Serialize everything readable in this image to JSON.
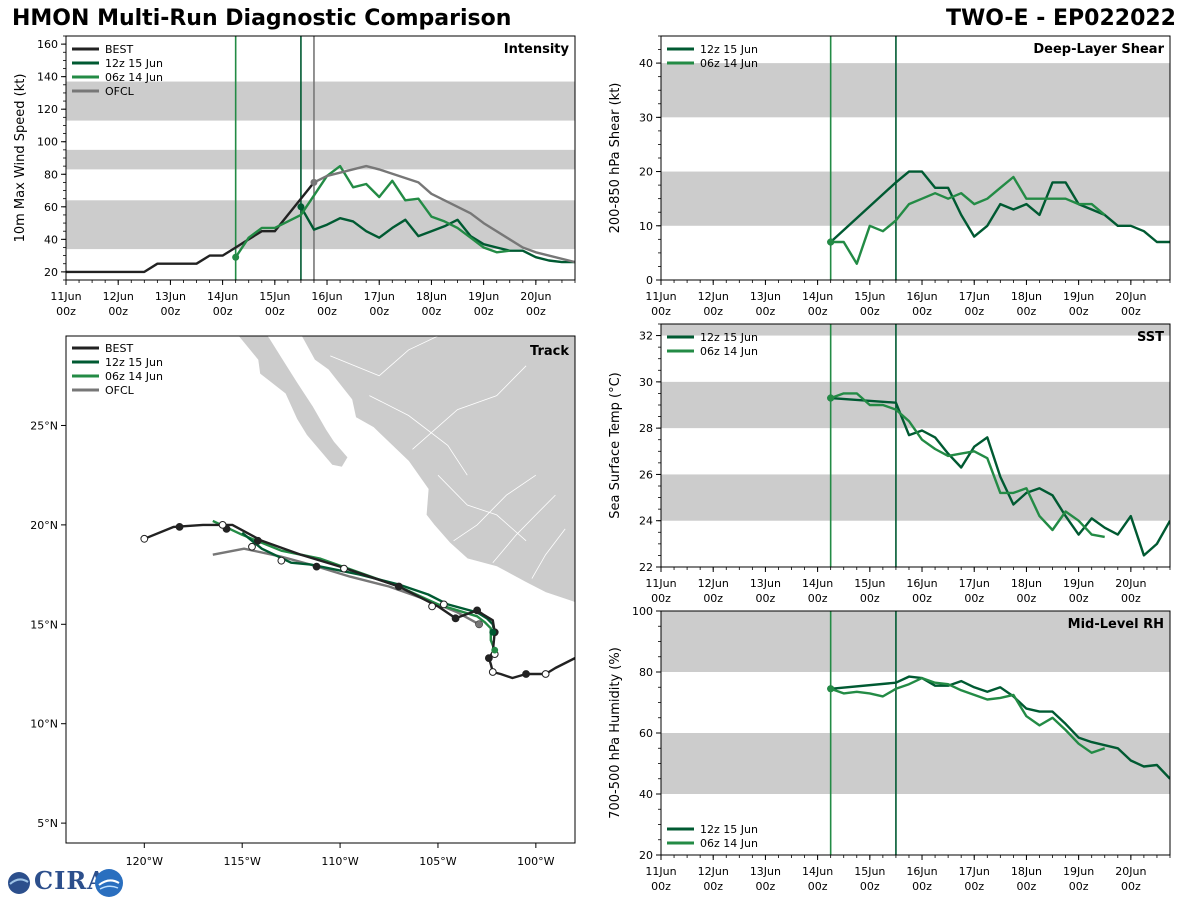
{
  "header": {
    "left_title": "HMON Multi-Run Diagnostic Comparison",
    "right_title": "TWO-E - EP022022"
  },
  "logo": {
    "text": "CIRA",
    "icon": "cira-logo"
  },
  "colors": {
    "BEST": "#222222",
    "run_12z": "#005a32",
    "run_06z": "#238b45",
    "OFCL": "#777777",
    "band": "#cccccc",
    "land": "#cccccc"
  },
  "time_axis": {
    "start": 0,
    "end": 9.75,
    "ticks": [
      {
        "t": 0,
        "label1": "11Jun",
        "label2": "00z"
      },
      {
        "t": 1,
        "label1": "12Jun",
        "label2": "00z"
      },
      {
        "t": 2,
        "label1": "13Jun",
        "label2": "00z"
      },
      {
        "t": 3,
        "label1": "14Jun",
        "label2": "00z"
      },
      {
        "t": 4,
        "label1": "15Jun",
        "label2": "00z"
      },
      {
        "t": 5,
        "label1": "16Jun",
        "label2": "00z"
      },
      {
        "t": 6,
        "label1": "17Jun",
        "label2": "00z"
      },
      {
        "t": 7,
        "label1": "18Jun",
        "label2": "00z"
      },
      {
        "t": 8,
        "label1": "19Jun",
        "label2": "00z"
      },
      {
        "t": 9,
        "label1": "20Jun",
        "label2": "00z"
      }
    ]
  },
  "chart_data": [
    {
      "id": "intensity",
      "type": "line",
      "title": "Intensity",
      "ylabel": "10m Max Wind Speed (kt)",
      "ylim": [
        15,
        165
      ],
      "yticks": [
        20,
        40,
        60,
        80,
        100,
        120,
        140,
        160
      ],
      "bands": [
        [
          34,
          64
        ],
        [
          83,
          95
        ],
        [
          113,
          137
        ]
      ],
      "vlines": [
        {
          "t": 3.25,
          "color": "run_06z"
        },
        {
          "t": 4.5,
          "color": "run_12z"
        },
        {
          "t": 4.75,
          "color": "OFCL"
        }
      ],
      "legend": [
        "BEST",
        "12z 15 Jun",
        "06z 14 Jun",
        "OFCL"
      ],
      "series": [
        {
          "name": "BEST",
          "color": "BEST",
          "x": [
            -0.25,
            0,
            0.5,
            1,
            1.5,
            1.75,
            2,
            2.5,
            2.75,
            3,
            3.25,
            3.5,
            3.75,
            4,
            4.25,
            4.5,
            4.75
          ],
          "y": [
            20,
            20,
            20,
            20,
            20,
            25,
            25,
            25,
            30,
            30,
            35,
            40,
            45,
            45,
            55,
            65,
            75
          ]
        },
        {
          "name": "12z 15 Jun",
          "color": "run_12z",
          "marker_first": true,
          "x": [
            4.5,
            4.75,
            5,
            5.25,
            5.5,
            5.75,
            6,
            6.25,
            6.5,
            6.75,
            7,
            7.25,
            7.5,
            7.75,
            8,
            8.25,
            8.5,
            8.75,
            9,
            9.25,
            9.5,
            9.75
          ],
          "y": [
            60,
            46,
            49,
            53,
            51,
            45,
            41,
            47,
            52,
            42,
            45,
            48,
            52,
            42,
            37,
            35,
            33,
            33,
            29,
            27,
            26,
            26
          ]
        },
        {
          "name": "06z 14 Jun",
          "color": "run_06z",
          "marker_first": true,
          "x": [
            3.25,
            3.5,
            3.75,
            4,
            4.25,
            4.5,
            4.75,
            5,
            5.25,
            5.5,
            5.75,
            6,
            6.25,
            6.5,
            6.75,
            7,
            7.25,
            7.5,
            7.75,
            8,
            8.25,
            8.5
          ],
          "y": [
            29,
            41,
            47,
            47,
            51,
            55,
            67,
            79,
            85,
            72,
            74,
            66,
            76,
            64,
            65,
            54,
            51,
            47,
            41,
            35,
            32,
            33
          ]
        },
        {
          "name": "OFCL",
          "color": "OFCL",
          "marker_first": true,
          "x": [
            4.75,
            5,
            5.75,
            6,
            6.75,
            7,
            7.75,
            8,
            8.75,
            9,
            9.75
          ],
          "y": [
            75,
            79,
            85,
            83,
            75,
            68,
            56,
            50,
            35,
            32,
            26
          ]
        }
      ]
    },
    {
      "id": "shear",
      "type": "line",
      "title": "Deep-Layer Shear",
      "ylabel": "200-850 hPa Shear (kt)",
      "ylim": [
        0,
        45
      ],
      "yticks": [
        0,
        10,
        20,
        30,
        40
      ],
      "bands": [
        [
          10,
          20
        ],
        [
          30,
          40
        ]
      ],
      "vlines": [
        {
          "t": 3.25,
          "color": "run_06z"
        },
        {
          "t": 4.5,
          "color": "run_12z"
        }
      ],
      "legend": [
        "12z 15 Jun",
        "06z 14 Jun"
      ],
      "series": [
        {
          "name": "12z 15 Jun",
          "color": "run_12z",
          "marker_first": true,
          "x": [
            3.25,
            4.5,
            4.75,
            5,
            5.25,
            5.5,
            5.75,
            6,
            6.25,
            6.5,
            6.75,
            7,
            7.25,
            7.5,
            7.75,
            8,
            8.25,
            8.5,
            8.75,
            9,
            9.25,
            9.5,
            9.75
          ],
          "y": [
            7,
            18,
            20,
            20,
            17,
            17,
            12,
            8,
            10,
            14,
            13,
            14,
            12,
            18,
            18,
            14,
            13,
            12,
            10,
            10,
            9,
            7,
            7
          ]
        },
        {
          "name": "06z 14 Jun",
          "color": "run_06z",
          "marker_first": true,
          "x": [
            3.25,
            3.5,
            3.75,
            4,
            4.25,
            4.5,
            4.75,
            5,
            5.25,
            5.5,
            5.75,
            6,
            6.25,
            6.5,
            6.75,
            7,
            7.25,
            7.5,
            7.75,
            8,
            8.25,
            8.5
          ],
          "y": [
            7,
            7,
            3,
            10,
            9,
            11,
            14,
            15,
            16,
            15,
            16,
            14,
            15,
            17,
            19,
            15,
            15,
            15,
            15,
            14,
            14,
            12
          ]
        }
      ]
    },
    {
      "id": "sst",
      "type": "line",
      "title": "SST",
      "ylabel": "Sea Surface Temp (°C)",
      "ylim": [
        22,
        32.5
      ],
      "yticks": [
        22,
        24,
        26,
        28,
        30,
        32
      ],
      "bands": [
        [
          24,
          26
        ],
        [
          28,
          30
        ],
        [
          32,
          32.5
        ]
      ],
      "vlines": [
        {
          "t": 3.25,
          "color": "run_06z"
        },
        {
          "t": 4.5,
          "color": "run_12z"
        }
      ],
      "legend": [
        "12z 15 Jun",
        "06z 14 Jun"
      ],
      "series": [
        {
          "name": "12z 15 Jun",
          "color": "run_12z",
          "marker_first": true,
          "x": [
            3.25,
            4.5,
            4.75,
            5,
            5.25,
            5.5,
            5.75,
            6,
            6.25,
            6.5,
            6.75,
            7,
            7.25,
            7.5,
            7.75,
            8,
            8.25,
            8.5,
            8.75,
            9,
            9.25,
            9.5,
            9.75
          ],
          "y": [
            29.3,
            29.1,
            27.7,
            27.9,
            27.6,
            26.9,
            26.3,
            27.2,
            27.6,
            25.9,
            24.7,
            25.2,
            25.4,
            25.1,
            24.2,
            23.4,
            24.1,
            23.7,
            23.4,
            24.2,
            22.5,
            23.0,
            24.0
          ]
        },
        {
          "name": "06z 14 Jun",
          "color": "run_06z",
          "marker_first": true,
          "x": [
            3.25,
            3.5,
            3.75,
            4,
            4.25,
            4.5,
            4.75,
            5,
            5.25,
            5.5,
            5.75,
            6,
            6.25,
            6.5,
            6.75,
            7,
            7.25,
            7.5,
            7.75,
            8,
            8.25,
            8.5
          ],
          "y": [
            29.3,
            29.5,
            29.5,
            29.0,
            29.0,
            28.8,
            28.3,
            27.5,
            27.1,
            26.8,
            26.9,
            27.0,
            26.7,
            25.2,
            25.2,
            25.4,
            24.2,
            23.6,
            24.4,
            24.0,
            23.4,
            23.3
          ]
        }
      ]
    },
    {
      "id": "rh",
      "type": "line",
      "title": "Mid-Level RH",
      "ylabel": "700-500 hPa Humidity (%)",
      "ylim": [
        20,
        100
      ],
      "yticks": [
        20,
        40,
        60,
        80,
        100
      ],
      "bands": [
        [
          40,
          60
        ],
        [
          80,
          100
        ]
      ],
      "vlines": [
        {
          "t": 3.25,
          "color": "run_06z"
        },
        {
          "t": 4.5,
          "color": "run_12z"
        }
      ],
      "legend_loc": "bottom-left",
      "legend": [
        "12z 15 Jun",
        "06z 14 Jun"
      ],
      "series": [
        {
          "name": "12z 15 Jun",
          "color": "run_12z",
          "marker_first": true,
          "x": [
            3.25,
            4.5,
            4.75,
            5,
            5.25,
            5.5,
            5.75,
            6,
            6.25,
            6.5,
            6.75,
            7,
            7.25,
            7.5,
            7.75,
            8,
            8.25,
            8.5,
            8.75,
            9,
            9.25,
            9.5,
            9.75
          ],
          "y": [
            74.5,
            76.5,
            78.5,
            78,
            75.5,
            75.5,
            77,
            75,
            73.5,
            75,
            72,
            68,
            67,
            67,
            63,
            58.5,
            57,
            56,
            55,
            51,
            49,
            49.5,
            45
          ]
        },
        {
          "name": "06z 14 Jun",
          "color": "run_06z",
          "marker_first": true,
          "x": [
            3.25,
            3.5,
            3.75,
            4,
            4.25,
            4.5,
            4.75,
            5,
            5.25,
            5.5,
            5.75,
            6,
            6.25,
            6.5,
            6.75,
            7,
            7.25,
            7.5,
            7.75,
            8,
            8.25,
            8.5
          ],
          "y": [
            74.5,
            73,
            73.5,
            73,
            72,
            74.5,
            76,
            78,
            76.5,
            76,
            74,
            72.5,
            71,
            71.5,
            72.5,
            65.5,
            62.5,
            65,
            61,
            56.5,
            53.5,
            55
          ]
        }
      ]
    },
    {
      "id": "track",
      "type": "scatter",
      "title": "Track",
      "xlim": [
        -124,
        -98
      ],
      "ylim": [
        4,
        29.5
      ],
      "xticks": [
        {
          "v": -120,
          "label": "120°W"
        },
        {
          "v": -115,
          "label": "115°W"
        },
        {
          "v": -110,
          "label": "110°W"
        },
        {
          "v": -105,
          "label": "105°W"
        },
        {
          "v": -100,
          "label": "100°W"
        }
      ],
      "yticks": [
        {
          "v": 5,
          "label": "5°N"
        },
        {
          "v": 10,
          "label": "10°N"
        },
        {
          "v": 15,
          "label": "15°N"
        },
        {
          "v": 20,
          "label": "20°N"
        },
        {
          "v": 25,
          "label": "25°N"
        }
      ],
      "legend": [
        "BEST",
        "12z 15 Jun",
        "06z 14 Jun",
        "OFCL"
      ],
      "series": [
        {
          "name": "BEST",
          "color": "BEST",
          "lon": [
            -98,
            -99,
            -99.5,
            -100.5,
            -101.2,
            -101.8,
            -102.2,
            -102.3,
            -102.4,
            -102.2,
            -102.1,
            -102.2,
            -102.7,
            -103,
            -104.1,
            -105,
            -107,
            -110,
            -112,
            -114,
            -115.5,
            -117,
            -118.5,
            -120
          ],
          "lat": [
            13.3,
            12.8,
            12.5,
            12.5,
            12.3,
            12.5,
            12.6,
            13,
            13.3,
            13.6,
            14.6,
            15.2,
            15.5,
            15.7,
            15.3,
            15.9,
            16.9,
            17.9,
            18.5,
            19.2,
            20,
            20.0,
            19.9,
            19.3
          ],
          "markers": [
            {
              "lon": -99.5,
              "lat": 12.5,
              "fill": "white"
            },
            {
              "lon": -100.5,
              "lat": 12.5,
              "fill": "solid"
            },
            {
              "lon": -102.2,
              "lat": 12.6,
              "fill": "white"
            },
            {
              "lon": -102.4,
              "lat": 13.3,
              "fill": "solid"
            },
            {
              "lon": -102.1,
              "lat": 14.6,
              "fill": "solid"
            },
            {
              "lon": -103,
              "lat": 15.7,
              "fill": "solid"
            },
            {
              "lon": -104.1,
              "lat": 15.3,
              "fill": "solid"
            },
            {
              "lon": -107,
              "lat": 16.9,
              "fill": "solid"
            },
            {
              "lon": -111.2,
              "lat": 17.9,
              "fill": "solid"
            },
            {
              "lon": -114.2,
              "lat": 19.2,
              "fill": "solid"
            },
            {
              "lon": -115.8,
              "lat": 19.8,
              "fill": "solid"
            },
            {
              "lon": -118.2,
              "lat": 19.9,
              "fill": "solid"
            },
            {
              "lon": -120,
              "lat": 19.3,
              "fill": "white"
            },
            {
              "lon": -116,
              "lat": 20.0,
              "fill": "white"
            },
            {
              "lon": -114.5,
              "lat": 18.9,
              "fill": "white"
            },
            {
              "lon": -113,
              "lat": 18.2,
              "fill": "white"
            },
            {
              "lon": -109.8,
              "lat": 17.8,
              "fill": "white"
            },
            {
              "lon": -104.7,
              "lat": 16.0,
              "fill": "white"
            },
            {
              "lon": -105.3,
              "lat": 15.9,
              "fill": "white"
            },
            {
              "lon": -102.9,
              "lat": 15.0,
              "fill": "white"
            },
            {
              "lon": -102.1,
              "lat": 13.5,
              "fill": "white"
            }
          ]
        },
        {
          "name": "12z 15 Jun",
          "color": "run_12z",
          "lon": [
            -102.1,
            -102.2,
            -102.5,
            -103,
            -104.5,
            -105.5,
            -107,
            -109,
            -111.5,
            -112.5,
            -114,
            -115
          ],
          "lat": [
            14.5,
            15.0,
            15.3,
            15.6,
            16.0,
            16.5,
            17.0,
            17.5,
            18.0,
            18.1,
            18.8,
            19.6
          ]
        },
        {
          "name": "06z 14 Jun",
          "color": "run_06z",
          "lon": [
            -102.1,
            -102.3,
            -102.3,
            -102.6,
            -103,
            -105,
            -107,
            -109,
            -111,
            -113,
            -115,
            -116.5
          ],
          "lat": [
            13.7,
            14.2,
            14.8,
            15.1,
            15.4,
            16.0,
            16.9,
            17.6,
            18.3,
            18.7,
            19.5,
            20.2
          ]
        },
        {
          "name": "OFCL",
          "color": "OFCL",
          "lon": [
            -102.9,
            -104,
            -105.5,
            -107.5,
            -109.5,
            -111.5,
            -113,
            -114.9,
            -116.5
          ],
          "lat": [
            15.0,
            15.6,
            16.2,
            16.9,
            17.4,
            18.0,
            18.4,
            18.8,
            18.5
          ]
        }
      ]
    }
  ]
}
